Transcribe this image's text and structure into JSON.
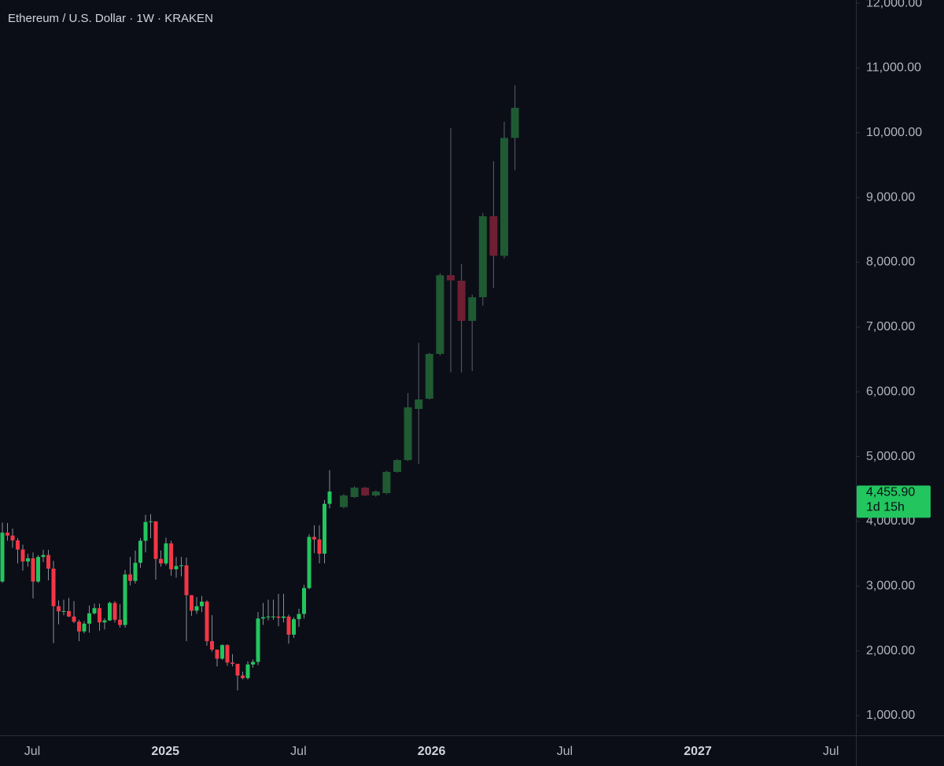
{
  "chart_data": {
    "type": "candlestick",
    "title": "Ethereum / U.S. Dollar · 1W · KRAKEN",
    "ylim": [
      696,
      12049
    ],
    "yticks": [
      {
        "value": 1000,
        "label": "1,000.00"
      },
      {
        "value": 2000,
        "label": "2,000.00"
      },
      {
        "value": 3000,
        "label": "3,000.00"
      },
      {
        "value": 4000,
        "label": "4,000.00"
      },
      {
        "value": 5000,
        "label": "5,000.00"
      },
      {
        "value": 6000,
        "label": "6,000.00"
      },
      {
        "value": 7000,
        "label": "7,000.00"
      },
      {
        "value": 8000,
        "label": "8,000.00"
      },
      {
        "value": 9000,
        "label": "9,000.00"
      },
      {
        "value": 10000,
        "label": "10,000.00"
      },
      {
        "value": 11000,
        "label": "11,000.00"
      },
      {
        "value": 12000,
        "label": "12,000.00"
      }
    ],
    "xticks": [
      "Jul",
      "2025",
      "Jul",
      "2026",
      "Jul",
      "2027",
      "Jul"
    ],
    "last_price": {
      "value": 4455.9,
      "label": "4,455.90"
    },
    "countdown": "1d 15h",
    "candles": {
      "up_color": "#22c55e",
      "down_color": "#f23645",
      "wick_color": "#8a8d96",
      "open": [
        3070,
        3825,
        3780,
        3705,
        3565,
        3380,
        3430,
        3070,
        3450,
        3480,
        3270,
        2690,
        2610,
        2615,
        2530,
        2450,
        2300,
        2420,
        2580,
        2660,
        2440,
        2470,
        2740,
        2480,
        2400,
        3180,
        3080,
        3360,
        3700,
        3990,
        4000,
        3420,
        3350,
        3660,
        3260,
        3310,
        3320,
        2860,
        2620,
        2690,
        2760,
        2150,
        2020,
        1880,
        2090,
        1820,
        1800,
        1620,
        1580,
        1790,
        1830,
        2500,
        2520,
        2530,
        2530,
        2510,
        2530,
        2250,
        2490,
        2570,
        2970,
        3760,
        3720,
        3500,
        4270
      ],
      "high": [
        3980,
        3975,
        3890,
        3740,
        3640,
        3500,
        3520,
        3480,
        3560,
        3560,
        3390,
        2780,
        2790,
        2820,
        2770,
        2480,
        2460,
        2700,
        2730,
        2730,
        2500,
        2760,
        2770,
        2720,
        3250,
        3450,
        3550,
        3740,
        4100,
        4110,
        4000,
        3550,
        3750,
        3700,
        3450,
        3450,
        3440,
        2860,
        2830,
        2850,
        2780,
        2550,
        2020,
        2100,
        2100,
        1950,
        1800,
        1680,
        1840,
        1870,
        2600,
        2740,
        2790,
        2790,
        2880,
        2880,
        2560,
        2520,
        2650,
        3020,
        3800,
        3940,
        3940,
        4330,
        4790
      ],
      "low": [
        3050,
        3700,
        3590,
        3350,
        3240,
        3300,
        2810,
        3050,
        3370,
        3090,
        2120,
        2410,
        2550,
        2520,
        2430,
        2150,
        2270,
        2280,
        2560,
        2310,
        2330,
        2460,
        2440,
        2360,
        2360,
        3010,
        3040,
        3280,
        3520,
        3740,
        3100,
        3300,
        3320,
        3160,
        3130,
        3150,
        2150,
        2540,
        2570,
        2600,
        2080,
        1990,
        1760,
        1860,
        1770,
        1760,
        1390,
        1560,
        1560,
        1740,
        1780,
        2400,
        2470,
        2480,
        2380,
        2440,
        2110,
        2200,
        2370,
        2500,
        2950,
        3510,
        3350,
        3350,
        4200
      ],
      "close": [
        3825,
        3780,
        3705,
        3565,
        3380,
        3430,
        3070,
        3450,
        3480,
        3270,
        2690,
        2610,
        2615,
        2530,
        2450,
        2300,
        2420,
        2580,
        2660,
        2440,
        2470,
        2740,
        2480,
        2400,
        3180,
        3080,
        3360,
        3700,
        3990,
        4000,
        3420,
        3350,
        3660,
        3260,
        3310,
        3320,
        2860,
        2620,
        2690,
        2760,
        2150,
        2020,
        1880,
        2090,
        1820,
        1800,
        1620,
        1580,
        1790,
        1830,
        2500,
        2520,
        2530,
        2530,
        2510,
        2530,
        2250,
        2490,
        2570,
        2970,
        3760,
        3720,
        3500,
        4270,
        4460
      ]
    },
    "projected_candles": {
      "up_color": "#1f5a33",
      "down_color": "#6e1f33",
      "wick_color": "#5d606b",
      "open": [
        4220,
        4375,
        4520,
        4400,
        4436,
        4764,
        4946,
        5735,
        5893,
        6585,
        7800,
        7715,
        7095,
        7460,
        8710,
        8100,
        9920
      ],
      "high": [
        4420,
        4540,
        4530,
        4480,
        4780,
        4960,
        5980,
        6755,
        6600,
        7830,
        10070,
        7970,
        7500,
        8760,
        9560,
        10170,
        10730
      ],
      "low": [
        4200,
        4360,
        4390,
        4380,
        4420,
        4750,
        4930,
        4885,
        5880,
        6560,
        6300,
        6300,
        6320,
        7330,
        7605,
        8060,
        9420
      ],
      "close": [
        4400,
        4520,
        4400,
        4460,
        4764,
        4946,
        5760,
        5881,
        6585,
        7799,
        7720,
        7095,
        7460,
        8710,
        8100,
        9920,
        10385
      ]
    }
  }
}
